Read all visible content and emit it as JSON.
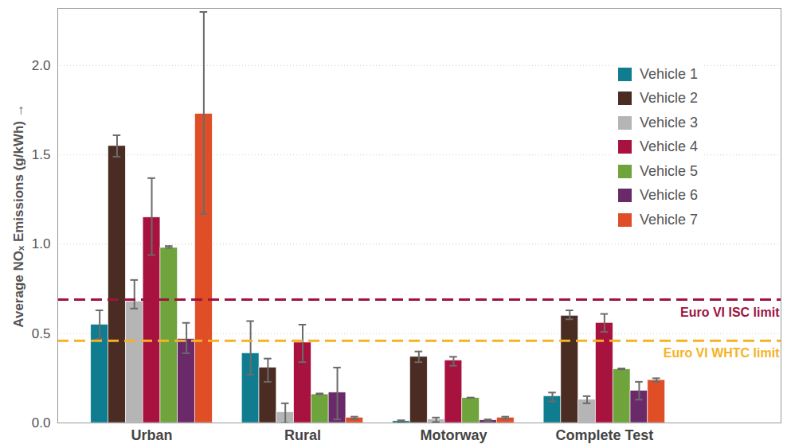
{
  "chart_data": {
    "type": "bar",
    "y_label": "Average NOₓ Emissions (g/kWh)",
    "categories": [
      "Urban",
      "Rural",
      "Motorway",
      "Complete Test"
    ],
    "series": [
      {
        "name": "Vehicle 1",
        "color": "#0f7d8f",
        "values": [
          0.55,
          0.39,
          0.01,
          0.15
        ],
        "error_low": [
          0.47,
          0.27,
          0.005,
          0.12
        ],
        "error_high": [
          0.63,
          0.57,
          0.015,
          0.17
        ]
      },
      {
        "name": "Vehicle 2",
        "color": "#4b2c22",
        "values": [
          1.55,
          0.31,
          0.37,
          0.6
        ],
        "error_low": [
          1.49,
          0.23,
          0.34,
          0.58
        ],
        "error_high": [
          1.61,
          0.36,
          0.4,
          0.63
        ]
      },
      {
        "name": "Vehicle 3",
        "color": "#b5b5b5",
        "values": [
          0.68,
          0.06,
          0.02,
          0.13
        ],
        "error_low": [
          0.64,
          0.0,
          0.005,
          0.11
        ],
        "error_high": [
          0.8,
          0.11,
          0.03,
          0.15
        ]
      },
      {
        "name": "Vehicle 4",
        "color": "#a8123f",
        "values": [
          1.15,
          0.45,
          0.35,
          0.56
        ],
        "error_low": [
          0.94,
          0.34,
          0.32,
          0.51
        ],
        "error_high": [
          1.37,
          0.55,
          0.37,
          0.61
        ]
      },
      {
        "name": "Vehicle 5",
        "color": "#6fa33c",
        "values": [
          0.98,
          0.16,
          0.14,
          0.3
        ],
        "error_low": [
          0.98,
          0.16,
          0.14,
          0.3
        ],
        "error_high": [
          0.99,
          0.165,
          0.142,
          0.305
        ]
      },
      {
        "name": "Vehicle 6",
        "color": "#6a2a6a",
        "values": [
          0.47,
          0.17,
          0.015,
          0.18
        ],
        "error_low": [
          0.39,
          0.02,
          0.01,
          0.13
        ],
        "error_high": [
          0.56,
          0.31,
          0.02,
          0.23
        ]
      },
      {
        "name": "Vehicle 7",
        "color": "#e04e27",
        "values": [
          1.73,
          0.03,
          0.03,
          0.24
        ],
        "error_low": [
          1.17,
          0.02,
          0.025,
          0.23
        ],
        "error_high": [
          2.3,
          0.035,
          0.035,
          0.25
        ]
      }
    ],
    "reference_lines": [
      {
        "label": "Euro VI ISC limit",
        "value": 0.69,
        "color": "#a0123f",
        "line_style": "dashed"
      },
      {
        "label": "Euro VI WHTC limit",
        "value": 0.46,
        "color": "#f5b324",
        "line_style": "dashed"
      }
    ],
    "ylim": [
      0,
      2.32
    ],
    "yticks": [
      {
        "value": 0,
        "label": "0.0"
      },
      0.5,
      {
        "value": 1,
        "label": "1.0"
      },
      1.5,
      {
        "value": 2,
        "label": "2.0"
      }
    ],
    "grid": true,
    "legend": "top-right"
  }
}
